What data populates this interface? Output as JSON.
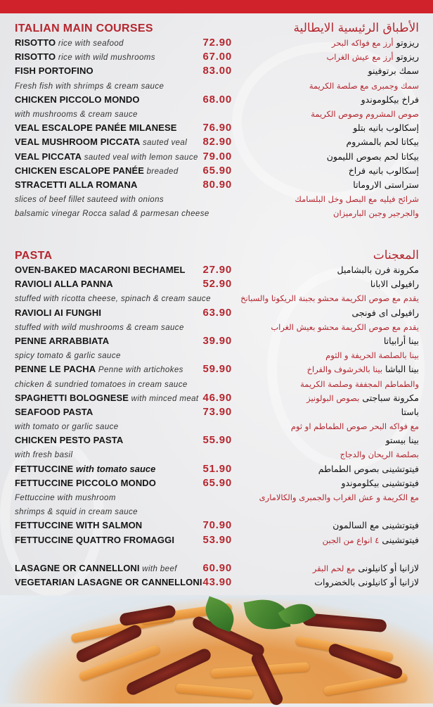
{
  "colors": {
    "accent": "#b5262e",
    "top_band": "#d0222b",
    "text": "#111111"
  },
  "sections": [
    {
      "title": "ITALIAN MAIN COURSES",
      "title_ar": "الأطباق الرئيسية الايطالية",
      "rows": [
        {
          "name": "RISOTTO",
          "desc": "rice with seafood",
          "price": "72.90",
          "ar_name": "ريزوتو",
          "ar_desc": "أرز مع فواكه البحر"
        },
        {
          "name": "RISOTTO",
          "desc": "rice with wild mushrooms",
          "price": "67.00",
          "ar_name": "ريزوتو",
          "ar_desc": "أرز مع عيش الغراب"
        },
        {
          "name": "FISH PORTOFINO",
          "desc": "",
          "price": "83.00",
          "ar_name": "سمك برتوفينو",
          "ar_desc": ""
        },
        {
          "name": "",
          "desc": "Fresh fish with shrimps & cream sauce",
          "price": "",
          "ar_name": "",
          "ar_desc": "سمك وجمبرى مع صلصة الكريمة"
        },
        {
          "name": "CHICKEN PICCOLO MONDO",
          "desc": "",
          "price": "68.00",
          "ar_name": "فراخ بيكلوموندو",
          "ar_desc": ""
        },
        {
          "name": "",
          "desc": "with mushrooms & cream sauce",
          "price": "",
          "ar_name": "",
          "ar_desc": "صوص المشروم وصوص الكريمة"
        },
        {
          "name": "VEAL ESCALOPE PANÉE MILANESE",
          "desc": "",
          "price": "76.90",
          "ar_name": "إسكالوب بانيه بتلو",
          "ar_desc": ""
        },
        {
          "name": "VEAL MUSHROOM PICCATA",
          "desc": "sauted veal",
          "price": "82.90",
          "ar_name": "بيكاتا لحم بالمشروم",
          "ar_desc": ""
        },
        {
          "name": "VEAL PICCATA",
          "desc": "sauted veal with lemon sauce",
          "price": "79.00",
          "ar_name": "بيكاتا لحم بصوص الليمون",
          "ar_desc": ""
        },
        {
          "name": "CHICKEN ESCALOPE PANÉE",
          "desc": "breaded",
          "price": "65.90",
          "ar_name": "إسكالوب بانيه فراخ",
          "ar_desc": ""
        },
        {
          "name": "STRACETTI ALLA ROMANA",
          "desc": "",
          "price": "80.90",
          "ar_name": "ستراستى الاروماتا",
          "ar_desc": ""
        },
        {
          "name": "",
          "desc": "slices of beef fillet sauteed with onions",
          "price": "",
          "ar_name": "",
          "ar_desc": "شرائح فيليه مع البصل وخل البلسامك"
        },
        {
          "name": "",
          "desc": "balsamic vinegar Rocca salad & parmesan cheese",
          "price": "",
          "ar_name": "",
          "ar_desc": "والجرجير وجبن البارميزان"
        }
      ]
    },
    {
      "title": "PASTA",
      "title_ar": "المعجنات",
      "rows": [
        {
          "name": "OVEN-BAKED MACARONI BECHAMEL",
          "desc": "",
          "price": "27.90",
          "ar_name": "مكرونة فرن بالبشاميل",
          "ar_desc": ""
        },
        {
          "name": "RAVIOLI ALLA PANNA",
          "desc": "",
          "price": "52.90",
          "ar_name": "رافيولى الابانا",
          "ar_desc": ""
        },
        {
          "name": "",
          "desc": "stuffed with ricotta cheese, spinach & cream sauce",
          "price": "",
          "ar_name": "",
          "ar_desc": "يقدم مع صوص الكريمة محشو بجبنة الريكوتا والسبانخ"
        },
        {
          "name": "RAVIOLI AI FUNGHI",
          "desc": "",
          "price": "63.90",
          "ar_name": "رافيولى اى فونجى",
          "ar_desc": ""
        },
        {
          "name": "",
          "desc": "stuffed with wild mushrooms & cream sauce",
          "price": "",
          "ar_name": "",
          "ar_desc": "يقدم مع صوص الكريمة محشو بعيش الغراب"
        },
        {
          "name": "PENNE ARRABBIATA",
          "desc": "",
          "price": "39.90",
          "ar_name": "بينا أرابياتا",
          "ar_desc": ""
        },
        {
          "name": "",
          "desc": "spicy tomato & garlic sauce",
          "price": "",
          "ar_name": "",
          "ar_desc": "بينا بالصلصة الحريفة و الثوم"
        },
        {
          "name": "PENNE LE PACHA",
          "desc": "Penne with artichokes",
          "price": "59.90",
          "ar_name": "بينا الباشا",
          "ar_desc": "بينا بالخرشوف والفراخ"
        },
        {
          "name": "",
          "desc": "chicken & sundried tomatoes in cream sauce",
          "price": "",
          "ar_name": "",
          "ar_desc": "والطماطم المجففة وصلصة الكريمة"
        },
        {
          "name": "SPAGHETTI BOLOGNESE",
          "desc": "with minced meat",
          "price": "46.90",
          "ar_name": "مكرونة سباجتى",
          "ar_desc": "بصوص البولونيز"
        },
        {
          "name": "SEAFOOD PASTA",
          "desc": "",
          "price": "73.90",
          "ar_name": "باستا",
          "ar_desc": ""
        },
        {
          "name": "",
          "desc": "with tomato or garlic sauce",
          "price": "",
          "ar_name": "",
          "ar_desc": "مع فواكه البحر  صوص الطماطم او ثوم"
        },
        {
          "name": "CHICKEN PESTO PASTA",
          "desc": "",
          "price": "55.90",
          "ar_name": "بينا بيستو",
          "ar_desc": ""
        },
        {
          "name": "",
          "desc": "with fresh basil",
          "price": "",
          "ar_name": "",
          "ar_desc": "بصلصة الريحان والدجاج"
        },
        {
          "name": "FETTUCCINE",
          "desc": "with tomato sauce",
          "desc_strong": true,
          "price": "51.90",
          "ar_name": "فيتوتشينى بصوص الطماطم",
          "ar_desc": ""
        },
        {
          "name": "FETTUCCINE PICCOLO MONDO",
          "desc": "",
          "price": "65.90",
          "ar_name": "فيتوتشينى بيكلوموندو",
          "ar_desc": ""
        },
        {
          "name": "",
          "desc": "Fettuccine with mushroom",
          "price": "",
          "ar_name": "",
          "ar_desc": "مع الكريمة و عش الغراب والجمبرى والكالامارى"
        },
        {
          "name": "",
          "desc": " shrimps & squid in cream sauce",
          "price": "",
          "ar_name": "",
          "ar_desc": ""
        },
        {
          "name": "FETTUCCINE WITH SALMON",
          "desc": "",
          "price": "70.90",
          "ar_name": "فيتوتشينى مع السالمون",
          "ar_desc": ""
        },
        {
          "name": "FETTUCCINE QUATTRO FROMAGGI",
          "desc": "",
          "price": "53.90",
          "ar_name": "فيتوتشينى",
          "ar_desc": "٤ انواع من الجبن"
        }
      ]
    },
    {
      "title": "",
      "title_ar": "",
      "rows": [
        {
          "name": "LASAGNE OR CANNELLONI",
          "desc": "with beef",
          "price": "60.90",
          "ar_name": "لازانيا  أو كانيلونى",
          "ar_desc": "مع لحم البقر"
        },
        {
          "name": "VEGETARIAN LASAGNE OR CANNELLONI",
          "desc": "",
          "price": "43.90",
          "ar_name": "لازانيا أو كانيلونى بالخضروات",
          "ar_desc": ""
        }
      ]
    }
  ]
}
